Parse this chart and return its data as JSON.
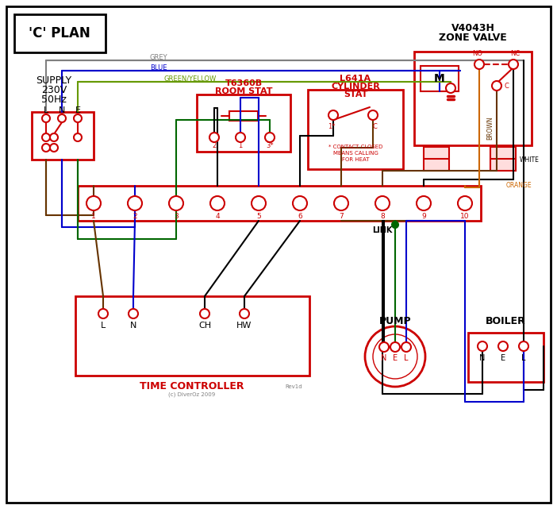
{
  "title": "'C' PLAN",
  "bg_color": "#ffffff",
  "border_color": "#000000",
  "red": "#cc0000",
  "blue": "#0000cc",
  "green": "#006600",
  "brown": "#663300",
  "grey": "#808080",
  "orange": "#cc6600",
  "green_yellow": "#669900",
  "black": "#000000",
  "supply_text_lines": [
    "SUPPLY",
    "230V",
    "50Hz"
  ],
  "zone_valve_title1": "V4043H",
  "zone_valve_title2": "ZONE VALVE",
  "room_stat_title1": "T6360B",
  "room_stat_title2": "ROOM STAT",
  "cylinder_stat_title1": "L641A",
  "cylinder_stat_title2": "CYLINDER",
  "cylinder_stat_title3": "STAT",
  "time_controller_label": "TIME CONTROLLER",
  "tc_terminals": [
    "L",
    "N",
    "CH",
    "HW"
  ],
  "pump_label": "PUMP",
  "boiler_label": "BOILER",
  "pump_terminals": [
    "N",
    "E",
    "L"
  ],
  "boiler_terminals": [
    "N",
    "E",
    "L"
  ],
  "terminal_numbers": [
    "1",
    "2",
    "3",
    "4",
    "5",
    "6",
    "7",
    "8",
    "9",
    "10"
  ],
  "wire_labels": [
    "GREY",
    "BLUE",
    "GREEN/YELLOW",
    "BROWN",
    "WHITE",
    "ORANGE",
    "LINK"
  ],
  "copyright": "(c) DiverOz 2009",
  "revision": "Rev1d"
}
